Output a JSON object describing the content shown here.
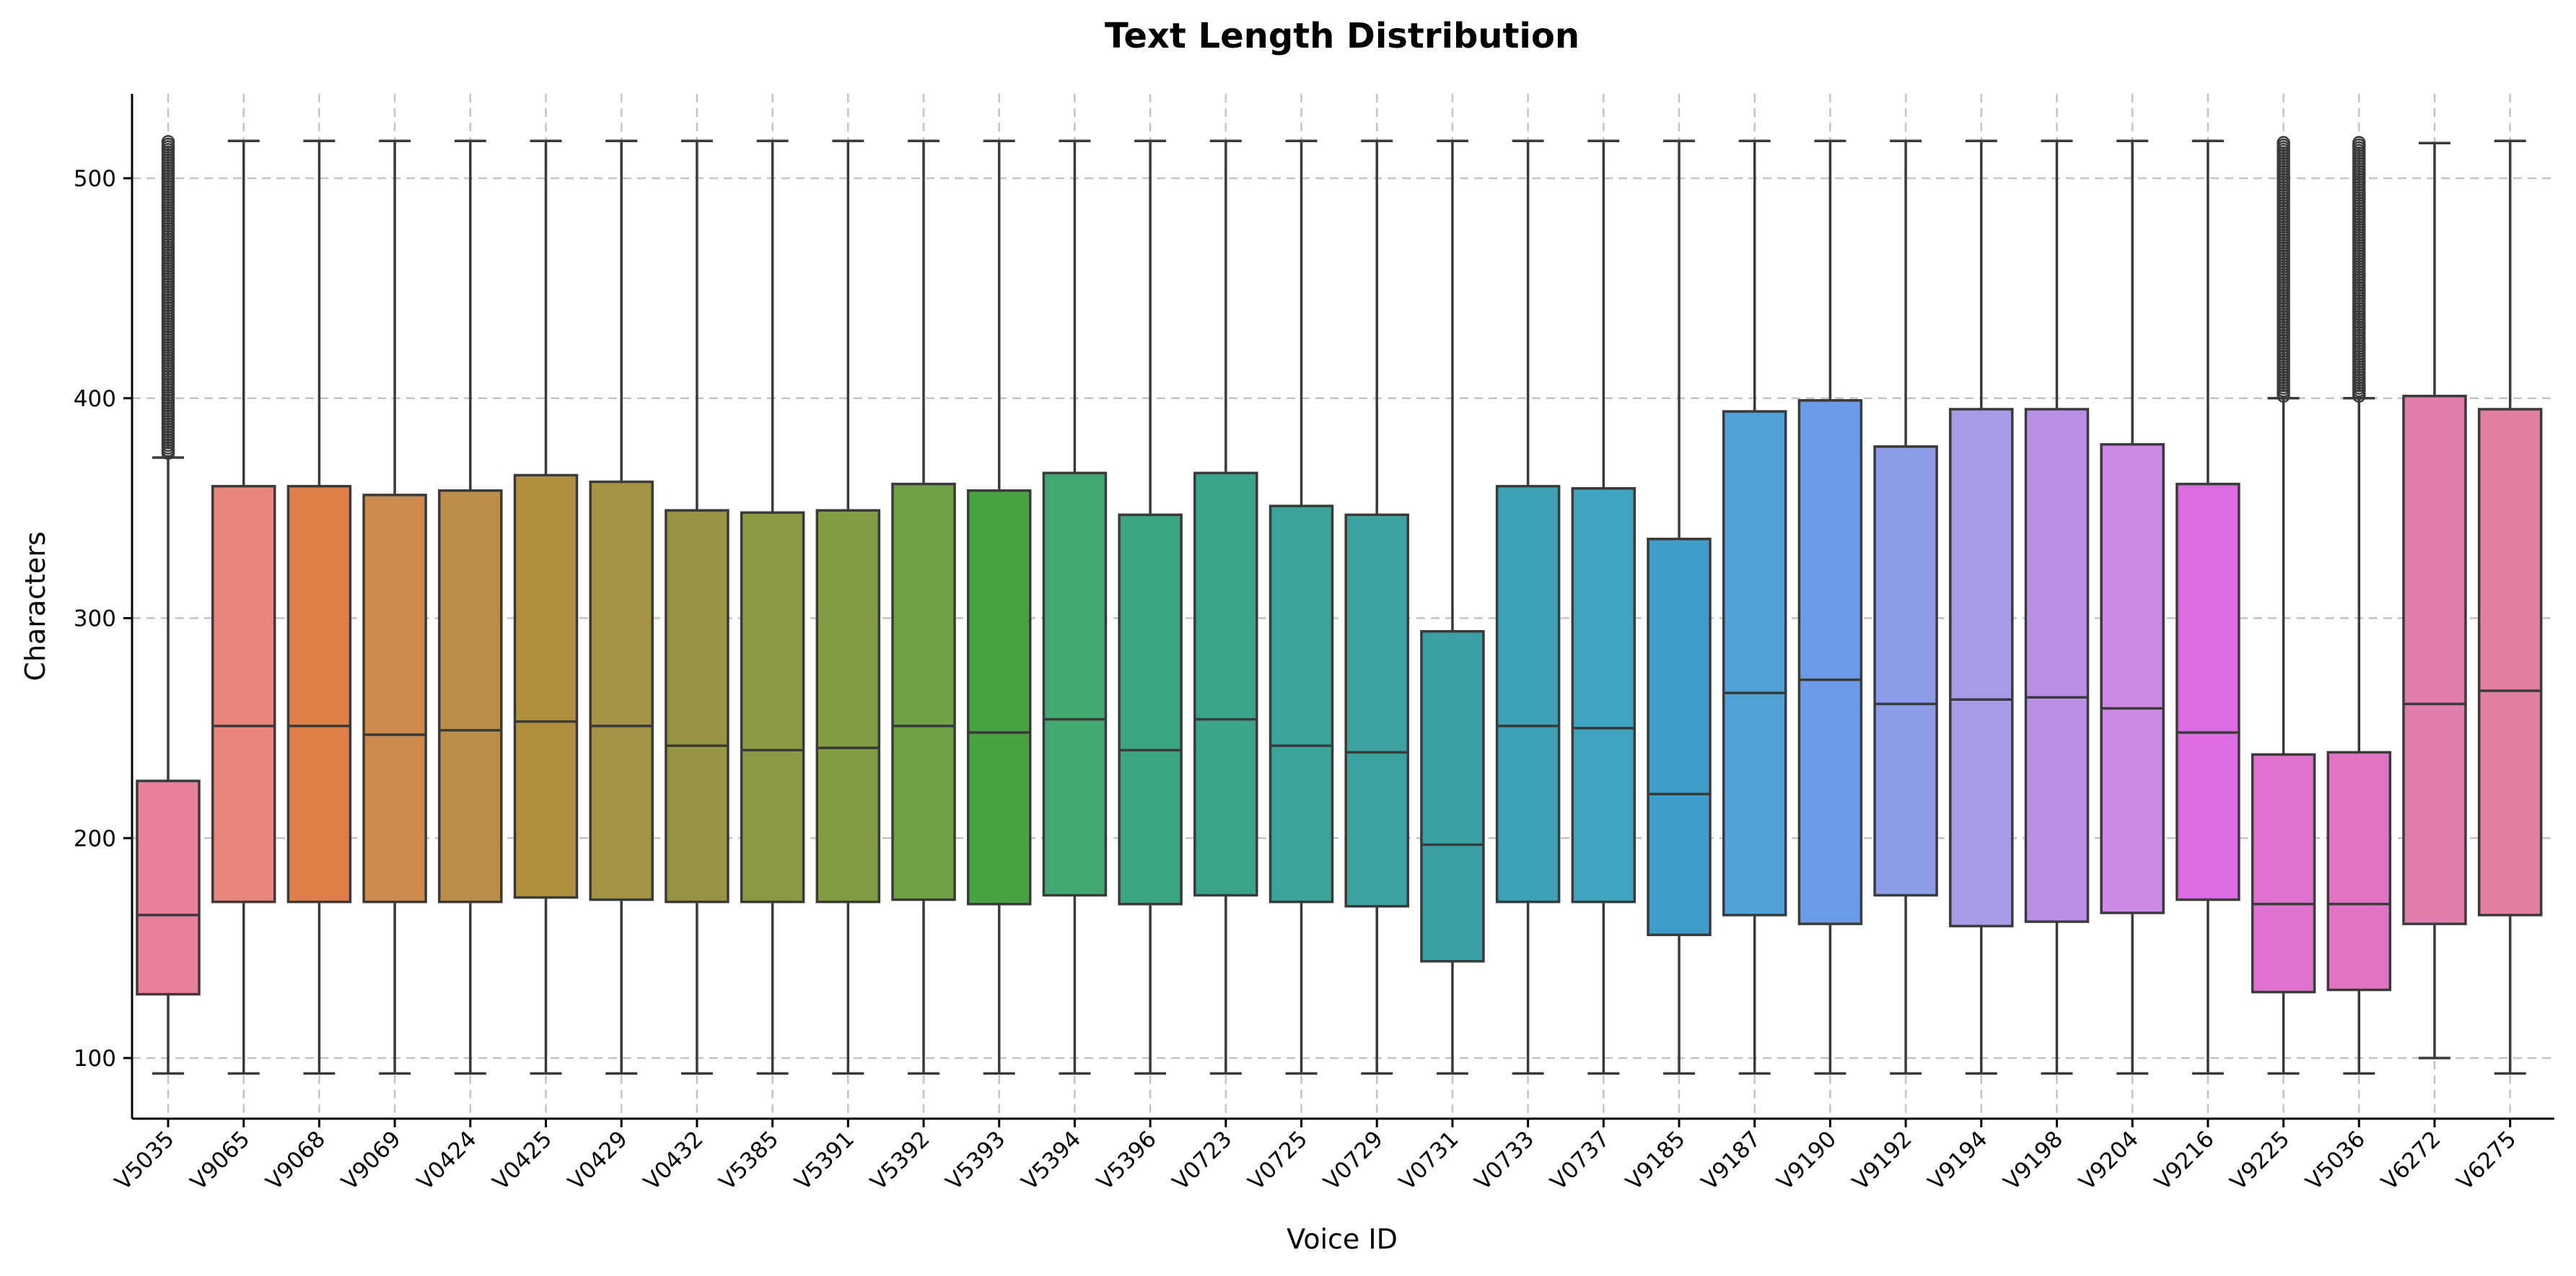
{
  "chart_data": {
    "type": "boxplot",
    "title": "Text Length Distribution",
    "xlabel": "Voice ID",
    "ylabel": "Characters",
    "ylim": [
      70,
      540
    ],
    "yticks": [
      100,
      200,
      300,
      400,
      500
    ],
    "grid": true,
    "legend": false,
    "categories": [
      "V5035",
      "V9065",
      "V9068",
      "V9069",
      "V0424",
      "V0425",
      "V0429",
      "V0432",
      "V5385",
      "V5391",
      "V5392",
      "V5393",
      "V5394",
      "V5396",
      "V0723",
      "V0725",
      "V0729",
      "V0731",
      "V0733",
      "V0737",
      "V9185",
      "V9187",
      "V9190",
      "V9192",
      "V9194",
      "V9198",
      "V9204",
      "V9216",
      "V9225",
      "V5036",
      "V6272",
      "V6275"
    ],
    "colors": [
      "#e8809a",
      "#e8857c",
      "#e08048",
      "#cd8a4b",
      "#bc8f48",
      "#b0903f",
      "#a49343",
      "#979543",
      "#8c9a43",
      "#829c43",
      "#6fa245",
      "#48a443",
      "#43a771",
      "#3aa57e",
      "#3aa48b",
      "#3aa39a",
      "#3ba29f",
      "#3ba0a3",
      "#3ca2b5",
      "#3ea4bf",
      "#3f9dcc",
      "#4fa1d6",
      "#6b9be6",
      "#8d9ce8",
      "#a99ae8",
      "#b98fe8",
      "#cd89e6",
      "#db6ce3",
      "#de72ce",
      "#e073c4",
      "#e07dad",
      "#e27e9e"
    ],
    "boxes": [
      {
        "whisker_low": 93,
        "q1": 129,
        "median": 165,
        "q3": 226,
        "whisker_high": 373,
        "outliers_range": [
          375,
          517
        ]
      },
      {
        "whisker_low": 93,
        "q1": 171,
        "median": 251,
        "q3": 360,
        "whisker_high": 517
      },
      {
        "whisker_low": 93,
        "q1": 171,
        "median": 251,
        "q3": 360,
        "whisker_high": 517
      },
      {
        "whisker_low": 93,
        "q1": 171,
        "median": 247,
        "q3": 356,
        "whisker_high": 517
      },
      {
        "whisker_low": 93,
        "q1": 171,
        "median": 249,
        "q3": 358,
        "whisker_high": 517
      },
      {
        "whisker_low": 93,
        "q1": 173,
        "median": 253,
        "q3": 365,
        "whisker_high": 517
      },
      {
        "whisker_low": 93,
        "q1": 172,
        "median": 251,
        "q3": 362,
        "whisker_high": 517
      },
      {
        "whisker_low": 93,
        "q1": 171,
        "median": 242,
        "q3": 349,
        "whisker_high": 517
      },
      {
        "whisker_low": 93,
        "q1": 171,
        "median": 240,
        "q3": 348,
        "whisker_high": 517
      },
      {
        "whisker_low": 93,
        "q1": 171,
        "median": 241,
        "q3": 349,
        "whisker_high": 517
      },
      {
        "whisker_low": 93,
        "q1": 172,
        "median": 251,
        "q3": 361,
        "whisker_high": 517
      },
      {
        "whisker_low": 93,
        "q1": 170,
        "median": 248,
        "q3": 358,
        "whisker_high": 517
      },
      {
        "whisker_low": 93,
        "q1": 174,
        "median": 254,
        "q3": 366,
        "whisker_high": 517
      },
      {
        "whisker_low": 93,
        "q1": 170,
        "median": 240,
        "q3": 347,
        "whisker_high": 517
      },
      {
        "whisker_low": 93,
        "q1": 174,
        "median": 254,
        "q3": 366,
        "whisker_high": 517
      },
      {
        "whisker_low": 93,
        "q1": 171,
        "median": 242,
        "q3": 351,
        "whisker_high": 517
      },
      {
        "whisker_low": 93,
        "q1": 169,
        "median": 239,
        "q3": 347,
        "whisker_high": 517
      },
      {
        "whisker_low": 93,
        "q1": 144,
        "median": 197,
        "q3": 294,
        "whisker_high": 517
      },
      {
        "whisker_low": 93,
        "q1": 171,
        "median": 251,
        "q3": 360,
        "whisker_high": 517
      },
      {
        "whisker_low": 93,
        "q1": 171,
        "median": 250,
        "q3": 359,
        "whisker_high": 517
      },
      {
        "whisker_low": 93,
        "q1": 156,
        "median": 220,
        "q3": 336,
        "whisker_high": 517
      },
      {
        "whisker_low": 93,
        "q1": 165,
        "median": 266,
        "q3": 394,
        "whisker_high": 517
      },
      {
        "whisker_low": 93,
        "q1": 161,
        "median": 272,
        "q3": 399,
        "whisker_high": 517
      },
      {
        "whisker_low": 93,
        "q1": 174,
        "median": 261,
        "q3": 378,
        "whisker_high": 517
      },
      {
        "whisker_low": 93,
        "q1": 160,
        "median": 263,
        "q3": 395,
        "whisker_high": 517
      },
      {
        "whisker_low": 93,
        "q1": 162,
        "median": 264,
        "q3": 395,
        "whisker_high": 517
      },
      {
        "whisker_low": 93,
        "q1": 166,
        "median": 259,
        "q3": 379,
        "whisker_high": 517
      },
      {
        "whisker_low": 93,
        "q1": 172,
        "median": 248,
        "q3": 361,
        "whisker_high": 517
      },
      {
        "whisker_low": 93,
        "q1": 130,
        "median": 170,
        "q3": 238,
        "whisker_high": 400,
        "outliers_range": [
          401,
          517
        ]
      },
      {
        "whisker_low": 93,
        "q1": 131,
        "median": 170,
        "q3": 239,
        "whisker_high": 400,
        "outliers_range": [
          401,
          517
        ]
      },
      {
        "whisker_low": 100,
        "q1": 161,
        "median": 261,
        "q3": 401,
        "whisker_high": 516
      },
      {
        "whisker_low": 93,
        "q1": 165,
        "median": 267,
        "q3": 395,
        "whisker_high": 517
      }
    ]
  }
}
